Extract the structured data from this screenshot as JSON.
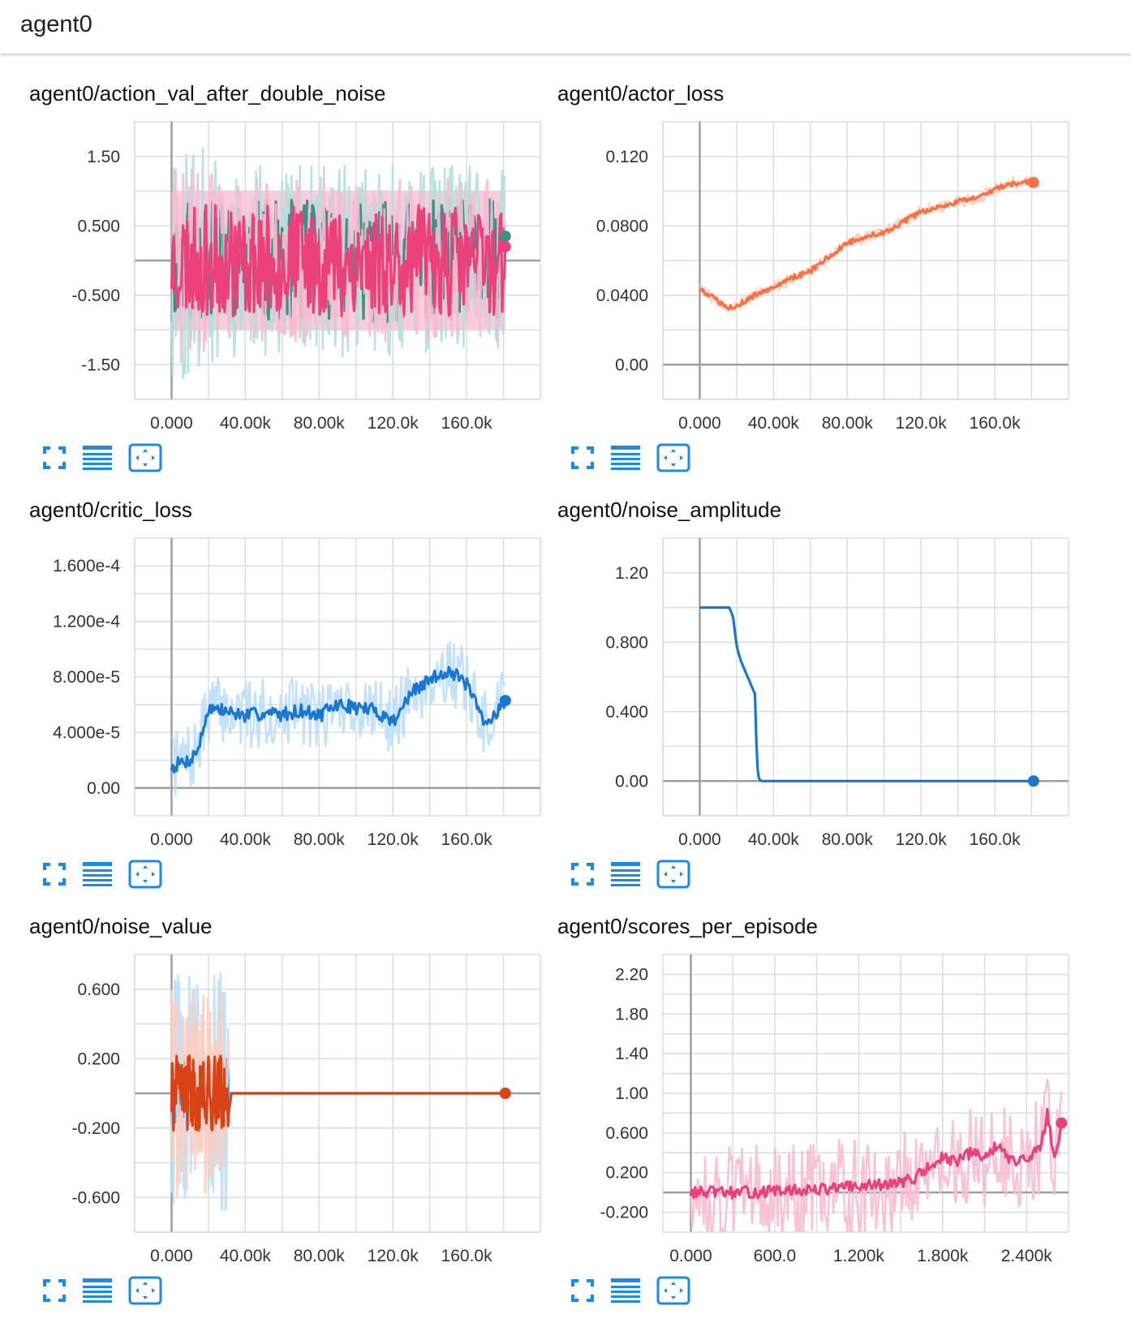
{
  "header": {
    "title": "agent0"
  },
  "toolbar": {
    "buttons": [
      {
        "name": "expand-chart-button",
        "icon": "fullscreen-icon"
      },
      {
        "name": "toggle-log-scale-button",
        "icon": "lines-icon"
      },
      {
        "name": "fit-domain-button",
        "icon": "fit-domain-icon"
      }
    ],
    "icon_color": "#1e88e5"
  },
  "charts": [
    {
      "title": "agent0/action_val_after_double_noise",
      "chart_data": {
        "type": "line",
        "x_ticks": [
          "0.000",
          "40.00k",
          "80.00k",
          "120.0k",
          "160.0k"
        ],
        "x_tick_values": [
          0,
          40000,
          80000,
          120000,
          160000
        ],
        "xlim": [
          -20000,
          200000
        ],
        "y_ticks": [
          "1.50",
          "0.500",
          "-0.500",
          "-1.50"
        ],
        "y_tick_values": [
          1.5,
          0.5,
          -0.5,
          -1.5
        ],
        "ylim": [
          -2.0,
          2.0
        ],
        "band": {
          "y0": -1.0,
          "y1": 1.0,
          "x0": 0,
          "x1": 181000,
          "color": "#f8bbd0"
        },
        "series": [
          {
            "color": "#3f8f87",
            "ghost": "#b2dfdb",
            "mean": 0.0,
            "amp": 0.55,
            "ghost_amp": 1.4,
            "noise": "uniform",
            "end_value": 0.35,
            "seed": 11,
            "x_end": 181000
          },
          {
            "color": "#ec407a",
            "ghost": "#f8bbd0",
            "mean": 0.0,
            "amp": 0.5,
            "ghost_amp": 1.2,
            "noise": "uniform",
            "end_value": 0.2,
            "seed": 23,
            "x_end": 181000
          }
        ]
      }
    },
    {
      "title": "agent0/actor_loss",
      "chart_data": {
        "type": "line",
        "x_ticks": [
          "0.000",
          "40.00k",
          "80.00k",
          "120.0k",
          "160.0k"
        ],
        "x_tick_values": [
          0,
          40000,
          80000,
          120000,
          160000
        ],
        "xlim": [
          -20000,
          200000
        ],
        "y_ticks": [
          "0.120",
          "0.0800",
          "0.0400",
          "0.00"
        ],
        "y_tick_values": [
          0.12,
          0.08,
          0.04,
          0.0
        ],
        "ylim": [
          -0.02,
          0.14
        ],
        "series": [
          {
            "color": "#ff7043",
            "ghost": "#ffccbc",
            "x": [
              0,
              8000,
              14000,
              20000,
              30000,
              40000,
              50000,
              60000,
              70000,
              80000,
              90000,
              100000,
              110000,
              120000,
              130000,
              140000,
              150000,
              160000,
              170000,
              181000
            ],
            "y": [
              0.044,
              0.038,
              0.033,
              0.034,
              0.04,
              0.045,
              0.05,
              0.054,
              0.062,
              0.07,
              0.074,
              0.076,
              0.082,
              0.088,
              0.091,
              0.094,
              0.096,
              0.101,
              0.104,
              0.106
            ],
            "jitter": 0.0015,
            "seed": 5,
            "end_value": 0.105
          }
        ]
      }
    },
    {
      "title": "agent0/critic_loss",
      "chart_data": {
        "type": "line",
        "x_ticks": [
          "0.000",
          "40.00k",
          "80.00k",
          "120.0k",
          "160.0k"
        ],
        "x_tick_values": [
          0,
          40000,
          80000,
          120000,
          160000
        ],
        "xlim": [
          -20000,
          200000
        ],
        "y_ticks": [
          "1.600e-4",
          "1.200e-4",
          "8.000e-5",
          "4.000e-5",
          "0.00"
        ],
        "y_tick_values": [
          0.00016,
          0.00012,
          8e-05,
          4e-05,
          0.0
        ],
        "ylim": [
          -2e-05,
          0.00018
        ],
        "series": [
          {
            "color": "#1976d2",
            "ghost": "#bbdefb",
            "x": [
              0,
              5000,
              10000,
              15000,
              20000,
              30000,
              40000,
              50000,
              60000,
              70000,
              80000,
              90000,
              100000,
              110000,
              120000,
              130000,
              140000,
              150000,
              160000,
              170000,
              181000
            ],
            "y": [
              1.5e-05,
              1.8e-05,
              2e-05,
              3e-05,
              5.8e-05,
              5.5e-05,
              5.2e-05,
              5.4e-05,
              5.3e-05,
              5.6e-05,
              5.2e-05,
              6e-05,
              5.8e-05,
              5.6e-05,
              4.8e-05,
              6.8e-05,
              7.8e-05,
              8.5e-05,
              7.5e-05,
              4.5e-05,
              6.3e-05
            ],
            "jitter": 5e-06,
            "ghost_jitter": 2.5e-05,
            "seed": 7,
            "end_value": 6.3e-05
          }
        ]
      }
    },
    {
      "title": "agent0/noise_amplitude",
      "chart_data": {
        "type": "line",
        "x_ticks": [
          "0.000",
          "40.00k",
          "80.00k",
          "120.0k",
          "160.0k"
        ],
        "x_tick_values": [
          0,
          40000,
          80000,
          120000,
          160000
        ],
        "xlim": [
          -20000,
          200000
        ],
        "y_ticks": [
          "1.20",
          "0.800",
          "0.400",
          "0.00"
        ],
        "y_tick_values": [
          1.2,
          0.8,
          0.4,
          0.0
        ],
        "ylim": [
          -0.2,
          1.4
        ],
        "series": [
          {
            "color": "#1976d2",
            "x": [
              0,
              10000,
              16000,
              18000,
              20000,
              22000,
              26000,
              30000,
              31000,
              32000,
              33000,
              181000
            ],
            "y": [
              1.0,
              1.0,
              1.0,
              0.95,
              0.78,
              0.7,
              0.6,
              0.5,
              0.1,
              0.02,
              0.0,
              0.0
            ],
            "end_value": 0.0
          }
        ]
      }
    },
    {
      "title": "agent0/noise_value",
      "chart_data": {
        "type": "line",
        "x_ticks": [
          "0.000",
          "40.00k",
          "80.00k",
          "120.0k",
          "160.0k"
        ],
        "x_tick_values": [
          0,
          40000,
          80000,
          120000,
          160000
        ],
        "xlim": [
          -20000,
          200000
        ],
        "y_ticks": [
          "0.600",
          "0.200",
          "-0.200",
          "-0.600"
        ],
        "y_tick_values": [
          0.6,
          0.2,
          -0.2,
          -0.6
        ],
        "ylim": [
          -0.8,
          0.8
        ],
        "series": [
          {
            "color": "#42a5f5",
            "ghost": "#bbdefb",
            "active_until": 31000,
            "amp": 0.2,
            "ghost_amp": 0.7,
            "seed": 31,
            "x_end": 181000,
            "end_value": 0.0
          },
          {
            "color": "#d84315",
            "ghost": "#ffccbc",
            "active_until": 31000,
            "amp": 0.22,
            "ghost_amp": 0.6,
            "seed": 41,
            "x_end": 181000,
            "end_value": 0.0
          }
        ]
      }
    },
    {
      "title": "agent0/scores_per_episode",
      "chart_data": {
        "type": "line",
        "x_ticks": [
          "0.000",
          "600.0",
          "1.200k",
          "1.800k",
          "2.400k"
        ],
        "x_tick_values": [
          0,
          600,
          1200,
          1800,
          2400
        ],
        "xlim": [
          -200,
          2700
        ],
        "y_ticks": [
          "2.20",
          "1.80",
          "1.40",
          "1.00",
          "0.600",
          "0.200",
          "-0.200"
        ],
        "y_tick_values": [
          2.2,
          1.8,
          1.4,
          1.0,
          0.6,
          0.2,
          -0.2
        ],
        "ylim": [
          -0.4,
          2.4
        ],
        "series": [
          {
            "color": "#ec407a",
            "ghost": "#f8bbd0",
            "x": [
              0,
              200,
              400,
              600,
              800,
              1000,
              1200,
              1400,
              1500,
              1600,
              1700,
              1800,
              1900,
              2000,
              2100,
              2200,
              2300,
              2400,
              2500,
              2550,
              2600,
              2650
            ],
            "y": [
              0.0,
              0.0,
              0.0,
              0.01,
              0.02,
              0.04,
              0.06,
              0.08,
              0.1,
              0.15,
              0.25,
              0.35,
              0.3,
              0.4,
              0.35,
              0.5,
              0.3,
              0.35,
              0.45,
              0.8,
              0.3,
              0.7
            ],
            "jitter": 0.06,
            "ghost_jitter": 0.5,
            "seed": 13,
            "end_value": 0.7
          }
        ]
      }
    }
  ]
}
